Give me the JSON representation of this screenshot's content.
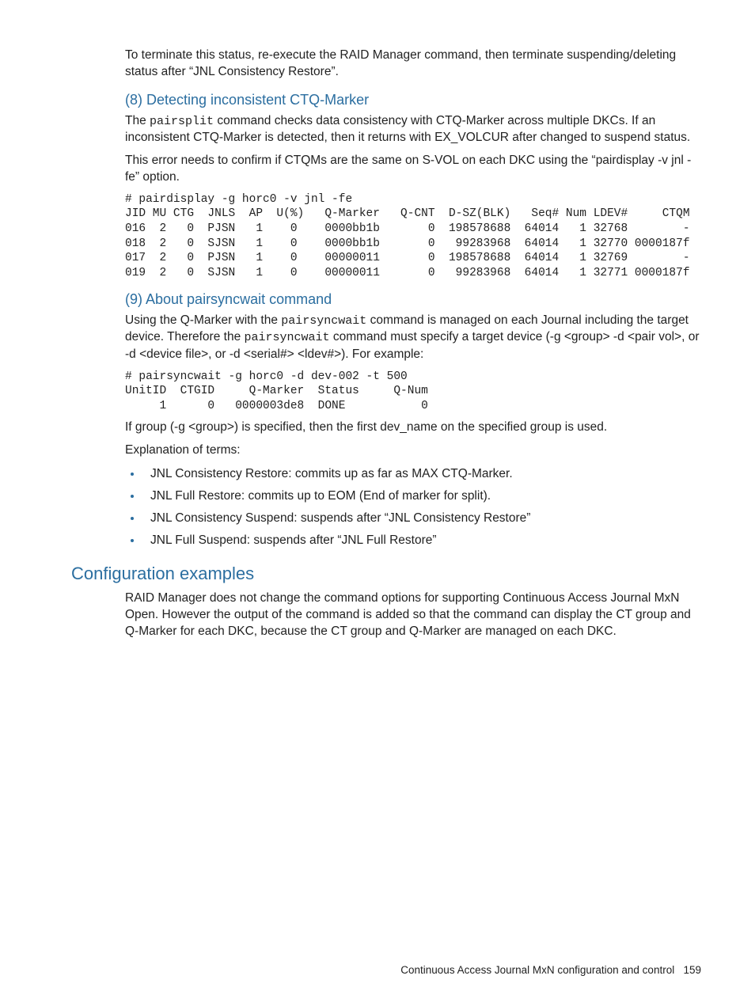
{
  "intro_p": "To terminate this status, re-execute the RAID Manager command, then terminate suspending/deleting status after “JNL Consistency Restore”.",
  "s8": {
    "heading": "(8) Detecting inconsistent CTQ-Marker",
    "p1_a": "The ",
    "p1_code": "pairsplit",
    "p1_b": " command checks data consistency with CTQ-Marker across multiple DKCs. If an inconsistent CTQ-Marker is detected, then it returns with EX_VOLCUR after changed to suspend status.",
    "p2": "This error needs to confirm if CTQMs are the same on S-VOL on each DKC using the “pairdisplay -v jnl -fe” option.",
    "code": "# pairdisplay -g horc0 -v jnl -fe\nJID MU CTG  JNLS  AP  U(%)   Q-Marker   Q-CNT  D-SZ(BLK)   Seq# Num LDEV#     CTQM\n016  2   0  PJSN   1    0    0000bb1b       0  198578688  64014   1 32768        -\n018  2   0  SJSN   1    0    0000bb1b       0   99283968  64014   1 32770 0000187f\n017  2   0  PJSN   1    0    00000011       0  198578688  64014   1 32769        -\n019  2   0  SJSN   1    0    00000011       0   99283968  64014   1 32771 0000187f"
  },
  "s9": {
    "heading": "(9) About pairsyncwait command",
    "p1_a": "Using the Q-Marker with the ",
    "p1_code1": "pairsyncwait",
    "p1_b": " command is managed on each Journal including the target device. Therefore the ",
    "p1_code2": "pairsyncwait",
    "p1_c": " command must specify a target device (-g <group> -d <pair vol>, or -d <device file>, or -d <serial#> <ldev#>). For example:",
    "code": "# pairsyncwait -g horc0 -d dev-002 -t 500\nUnitID  CTGID     Q-Marker  Status     Q-Num\n     1      0   0000003de8  DONE           0",
    "p2": "If group (-g <group>) is specified, then the first dev_name on the specified group is used.",
    "p3": "Explanation of terms:",
    "bullets": [
      "JNL Consistency Restore: commits up as far as MAX CTQ-Marker.",
      "JNL Full Restore: commits up to EOM (End of marker for split).",
      "JNL Consistency Suspend: suspends after “JNL Consistency Restore”",
      "JNL Full Suspend: suspends after “JNL Full Restore”"
    ]
  },
  "config": {
    "heading": "Configuration examples",
    "p1": "RAID Manager does not change the command options for supporting Continuous Access Journal MxN Open. However the output of the command is added so that the command can display the CT group and Q-Marker for each DKC, because the CT group and Q-Marker are managed on each DKC."
  },
  "footer": {
    "text": "Continuous Access Journal MxN configuration and control",
    "page": "159"
  }
}
